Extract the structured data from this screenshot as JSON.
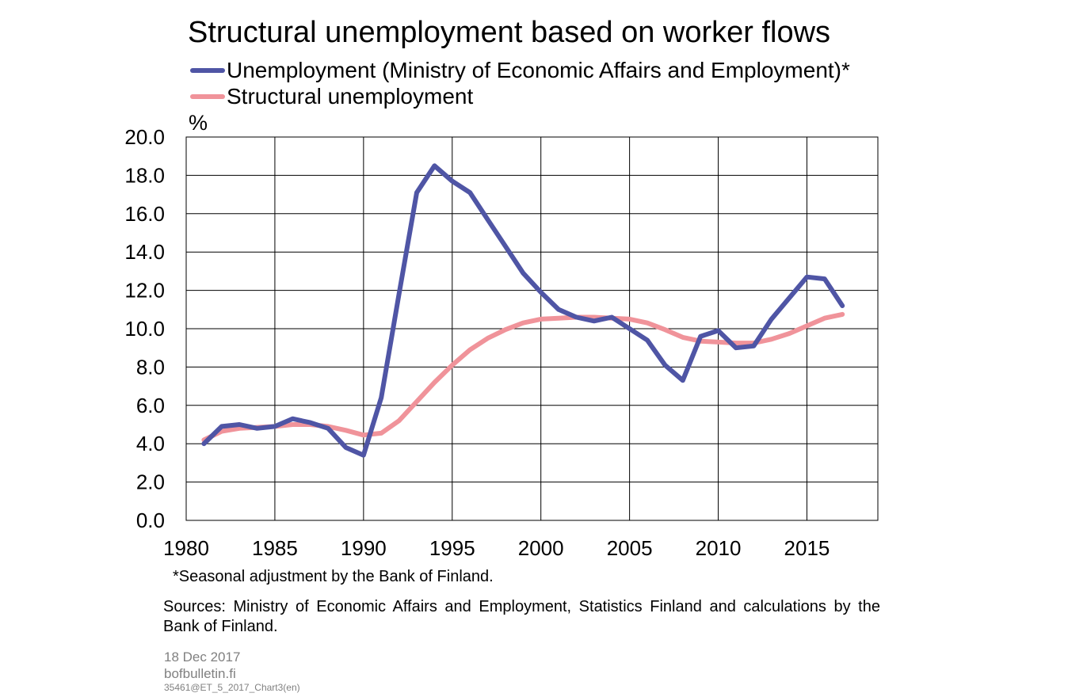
{
  "chart_data": {
    "type": "line",
    "title": "Structural unemployment based on worker flows",
    "ylabel": "%",
    "xlabel": "",
    "ylim": [
      0,
      20
    ],
    "yticks": [
      0,
      2,
      4,
      6,
      8,
      10,
      12,
      14,
      16,
      18,
      20
    ],
    "ytick_labels": [
      "0.0",
      "2.0",
      "4.0",
      "6.0",
      "8.0",
      "10.0",
      "12.0",
      "14.0",
      "16.0",
      "18.0",
      "20.0"
    ],
    "xlim": [
      1980,
      2019
    ],
    "xtick_labels": [
      "1980",
      "1985",
      "1990",
      "1995",
      "2000",
      "2005",
      "2010",
      "2015"
    ],
    "grid": true,
    "legend_position": "top-left",
    "x": [
      1981,
      1982,
      1983,
      1984,
      1985,
      1986,
      1987,
      1988,
      1989,
      1990,
      1991,
      1992,
      1993,
      1994,
      1995,
      1996,
      1997,
      1998,
      1999,
      2000,
      2001,
      2002,
      2003,
      2004,
      2005,
      2006,
      2007,
      2008,
      2009,
      2010,
      2011,
      2012,
      2013,
      2014,
      2015,
      2016,
      2017
    ],
    "series": [
      {
        "name": "Unemployment (Ministry of Economic Affairs and Employment)*",
        "color": "#4f55a5",
        "values": [
          4.0,
          4.9,
          5.0,
          4.8,
          4.9,
          5.3,
          5.1,
          4.8,
          3.8,
          3.4,
          6.4,
          11.8,
          17.1,
          18.5,
          17.7,
          17.1,
          15.7,
          14.3,
          12.9,
          11.9,
          11.0,
          10.6,
          10.4,
          10.6,
          10.0,
          9.4,
          8.1,
          7.3,
          9.6,
          9.9,
          9.0,
          9.1,
          10.5,
          11.6,
          12.7,
          12.6,
          11.2
        ]
      },
      {
        "name": "Structural unemployment",
        "color": "#f0939a",
        "values": [
          4.2,
          4.65,
          4.8,
          4.85,
          4.9,
          5.0,
          5.0,
          4.9,
          4.7,
          4.45,
          4.55,
          5.2,
          6.2,
          7.2,
          8.1,
          8.9,
          9.5,
          9.95,
          10.3,
          10.5,
          10.55,
          10.6,
          10.6,
          10.55,
          10.5,
          10.3,
          9.95,
          9.55,
          9.35,
          9.3,
          9.25,
          9.25,
          9.45,
          9.75,
          10.15,
          10.55,
          10.75
        ]
      }
    ]
  },
  "notes": {
    "footnote": "*Seasonal adjustment  by the Bank of Finland.",
    "sources": "Sources: Ministry of Economic Affairs and Employment, Statistics Finland and calculations by the Bank of Finland."
  },
  "meta": {
    "date": "18 Dec 2017",
    "site": "bofbulletin.fi",
    "code": "35461@ET_5_2017_Chart3(en)"
  }
}
